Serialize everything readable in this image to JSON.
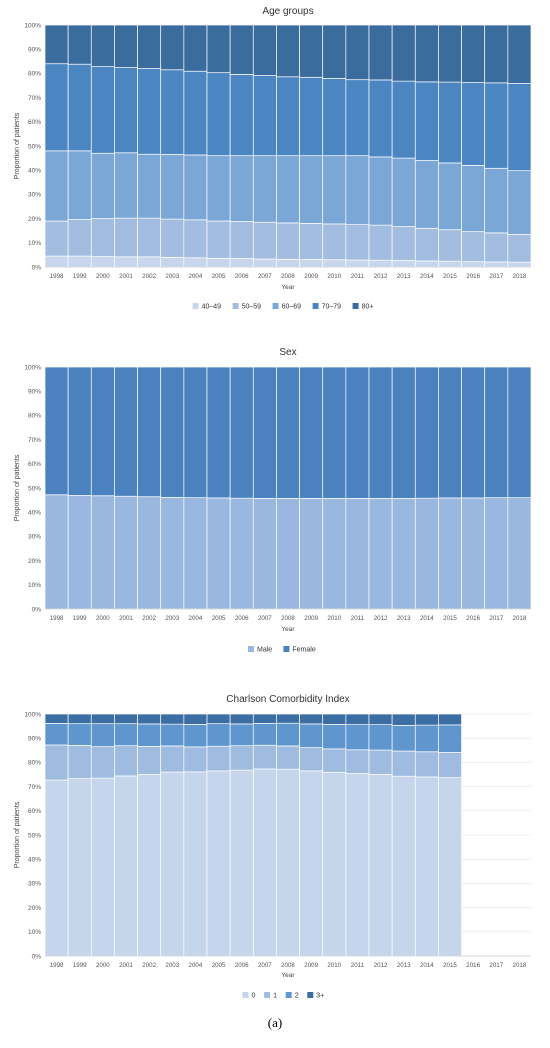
{
  "caption": "(a)",
  "chart_data": [
    {
      "type": "bar",
      "stacked": true,
      "title": "Age groups",
      "xlabel": "Year",
      "ylabel": "Proportion of patients",
      "ylim": [
        0,
        100
      ],
      "yticks": [
        "0%",
        "10%",
        "20%",
        "30%",
        "40%",
        "50%",
        "60%",
        "70%",
        "80%",
        "90%",
        "100%"
      ],
      "legend_position": "bottom",
      "categories": [
        "1998",
        "1999",
        "2000",
        "2001",
        "2002",
        "2003",
        "2004",
        "2005",
        "2006",
        "2007",
        "2008",
        "2009",
        "2010",
        "2011",
        "2012",
        "2013",
        "2014",
        "2015",
        "2016",
        "2017",
        "2018"
      ],
      "series": [
        {
          "name": "40–49",
          "color": "#c7d6ec",
          "values": [
            4.5,
            4.5,
            4.3,
            4.2,
            4.2,
            4.0,
            3.8,
            3.6,
            3.5,
            3.3,
            3.2,
            3.1,
            3.0,
            2.9,
            2.8,
            2.7,
            2.5,
            2.4,
            2.2,
            2.1,
            2.0
          ]
        },
        {
          "name": "50–59",
          "color": "#a3bde0",
          "values": [
            14.5,
            15.1,
            15.7,
            16.0,
            16.0,
            15.8,
            15.7,
            15.4,
            15.3,
            15.2,
            15.0,
            14.9,
            14.8,
            14.6,
            14.5,
            14.0,
            13.5,
            13.0,
            12.4,
            12.0,
            11.5
          ]
        },
        {
          "name": "60–69",
          "color": "#7ba7d7",
          "values": [
            29.0,
            28.4,
            27.0,
            27.0,
            26.4,
            26.7,
            26.8,
            27.0,
            27.2,
            27.5,
            27.8,
            28.0,
            28.2,
            28.5,
            28.2,
            28.3,
            28.0,
            27.6,
            27.4,
            26.7,
            26.3
          ]
        },
        {
          "name": "70–79",
          "color": "#4c86c2",
          "values": [
            36.0,
            35.8,
            35.8,
            35.2,
            35.4,
            35.0,
            34.6,
            34.3,
            33.6,
            33.1,
            32.6,
            32.4,
            31.9,
            31.4,
            31.8,
            31.8,
            32.5,
            33.4,
            34.2,
            35.3,
            36.0
          ]
        },
        {
          "name": "80+",
          "color": "#3a6d9e",
          "values": [
            16.0,
            16.2,
            17.2,
            17.6,
            18.0,
            18.5,
            19.1,
            19.7,
            20.4,
            20.9,
            21.4,
            21.6,
            22.1,
            22.6,
            22.7,
            23.2,
            23.5,
            23.6,
            23.8,
            23.9,
            24.2
          ]
        }
      ]
    },
    {
      "type": "bar",
      "stacked": true,
      "title": "Sex",
      "xlabel": "Year",
      "ylabel": "Proportion of patients",
      "ylim": [
        0,
        100
      ],
      "yticks": [
        "0%",
        "10%",
        "20%",
        "30%",
        "40%",
        "50%",
        "60%",
        "70%",
        "80%",
        "90%",
        "100%"
      ],
      "legend_position": "bottom",
      "categories": [
        "1998",
        "1999",
        "2000",
        "2001",
        "2002",
        "2003",
        "2004",
        "2005",
        "2006",
        "2007",
        "2008",
        "2009",
        "2010",
        "2011",
        "2012",
        "2013",
        "2014",
        "2015",
        "2016",
        "2017",
        "2018"
      ],
      "series": [
        {
          "name": "Male",
          "color": "#9ab8df",
          "values": [
            47.2,
            46.9,
            46.8,
            46.6,
            46.4,
            46.1,
            46.0,
            45.9,
            45.8,
            45.7,
            45.7,
            45.7,
            45.7,
            45.7,
            45.7,
            45.7,
            45.8,
            45.9,
            45.9,
            46.0,
            46.0
          ]
        },
        {
          "name": "Female",
          "color": "#4a82bf",
          "values": [
            52.8,
            53.1,
            53.2,
            53.4,
            53.6,
            53.9,
            54.0,
            54.1,
            54.2,
            54.3,
            54.3,
            54.3,
            54.3,
            54.3,
            54.3,
            54.3,
            54.2,
            54.1,
            54.1,
            54.0,
            54.0
          ]
        }
      ]
    },
    {
      "type": "bar",
      "stacked": true,
      "title": "Charlson Comorbidity Index",
      "xlabel": "Year",
      "ylabel": "Proportion of patients",
      "ylim": [
        0,
        100
      ],
      "yticks": [
        "0%",
        "10%",
        "20%",
        "30%",
        "40%",
        "50%",
        "60%",
        "70%",
        "80%",
        "90%",
        "100%"
      ],
      "legend_position": "bottom",
      "categories": [
        "1998",
        "1999",
        "2000",
        "2001",
        "2002",
        "2003",
        "2004",
        "2005",
        "2006",
        "2007",
        "2008",
        "2009",
        "2010",
        "2011",
        "2012",
        "2013",
        "2014",
        "2015",
        "2016",
        "2017",
        "2018"
      ],
      "series": [
        {
          "name": "0",
          "color": "#c5d5ec",
          "values": [
            72.7,
            73.3,
            73.5,
            74.4,
            75.0,
            76.0,
            76.1,
            76.5,
            76.8,
            77.3,
            77.2,
            76.5,
            75.9,
            75.4,
            75.0,
            74.3,
            74.0,
            73.7,
            null,
            null,
            null
          ]
        },
        {
          "name": "1",
          "color": "#9fbce0",
          "values": [
            14.5,
            13.7,
            13.0,
            12.5,
            11.6,
            10.8,
            10.3,
            10.2,
            10.1,
            9.8,
            9.6,
            9.6,
            9.7,
            9.8,
            10.1,
            10.4,
            10.4,
            10.4,
            null,
            null,
            null
          ]
        },
        {
          "name": "2",
          "color": "#5e96cd",
          "values": [
            8.9,
            9.0,
            9.5,
            9.1,
            9.3,
            9.0,
            9.3,
            9.3,
            9.0,
            9.0,
            9.4,
            9.8,
            10.1,
            10.4,
            10.5,
            10.6,
            11.0,
            11.4,
            null,
            null,
            null
          ]
        },
        {
          "name": "3+",
          "color": "#3b6fa3",
          "values": [
            3.9,
            4.0,
            4.0,
            4.0,
            4.1,
            4.2,
            4.3,
            4.0,
            4.1,
            3.9,
            3.8,
            4.1,
            4.3,
            4.4,
            4.4,
            4.7,
            4.6,
            4.5,
            null,
            null,
            null
          ]
        }
      ]
    }
  ]
}
